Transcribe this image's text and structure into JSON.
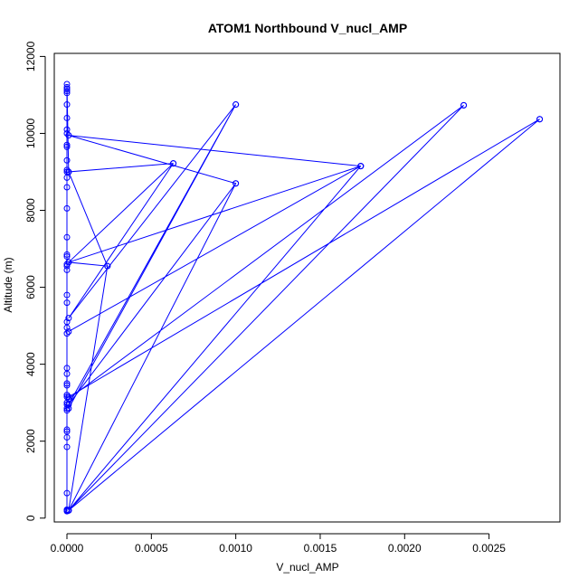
{
  "chart_data": {
    "type": "line",
    "title": "ATOM1 Northbound V_nucl_AMP",
    "xlabel": "V_nucl_AMP",
    "ylabel": "Altitude (m)",
    "xlim": [
      -7.5e-05,
      0.00292
    ],
    "ylim": [
      -100,
      12080
    ],
    "xticks": [
      0,
      0.0005,
      0.001,
      0.0015,
      0.002,
      0.0025
    ],
    "xtick_labels": [
      "0.0000",
      "0.0005",
      "0.0010",
      "0.0015",
      "0.0020",
      "0.0025"
    ],
    "yticks": [
      0,
      2000,
      4000,
      6000,
      8000,
      10000,
      12000
    ],
    "ytick_labels": [
      "0",
      "2000",
      "4000",
      "6000",
      "8000",
      "10000",
      "12000"
    ],
    "grid": false,
    "series": [
      {
        "color": "#0000ff",
        "marker": "open-circle",
        "points": [
          [
            0.0,
            200
          ],
          [
            0.0,
            180
          ],
          [
            0.0,
            200
          ],
          [
            0.0,
            220
          ],
          [
            0.0,
            650
          ],
          [
            0.0,
            1850
          ],
          [
            0.0,
            2100
          ],
          [
            0.0,
            2250
          ],
          [
            0.0,
            2300
          ],
          [
            0.0,
            2800
          ],
          [
            0.0,
            2850
          ],
          [
            0.0,
            2950
          ],
          [
            0.0,
            3000
          ],
          [
            0.0,
            3150
          ],
          [
            0.0,
            3200
          ],
          [
            0.0,
            3450
          ],
          [
            0.0,
            3500
          ],
          [
            0.0,
            3750
          ],
          [
            0.0,
            3900
          ],
          [
            0.0,
            4800
          ],
          [
            0.0,
            4950
          ],
          [
            0.0,
            5100
          ],
          [
            0.0,
            5600
          ],
          [
            0.0,
            5800
          ],
          [
            0.0,
            6450
          ],
          [
            0.0,
            6550
          ],
          [
            0.0,
            6600
          ],
          [
            0.0,
            6800
          ],
          [
            0.0,
            6850
          ],
          [
            0.0,
            7300
          ],
          [
            0.0,
            8050
          ],
          [
            0.0,
            8600
          ],
          [
            0.0,
            8850
          ],
          [
            0.0,
            9000
          ],
          [
            0.0,
            9050
          ],
          [
            0.0,
            9300
          ],
          [
            0.0,
            9650
          ],
          [
            0.0,
            9700
          ],
          [
            0.0,
            10000
          ],
          [
            0.0,
            10100
          ],
          [
            0.0,
            10400
          ],
          [
            0.0,
            10750
          ],
          [
            0.0,
            11050
          ],
          [
            0.0,
            11100
          ],
          [
            0.0,
            11150
          ],
          [
            0.0,
            11200
          ],
          [
            0.0,
            11280
          ],
          [
            1e-05,
            9000
          ],
          [
            0.00063,
            9220
          ],
          [
            1e-05,
            9000
          ],
          [
            0.00024,
            6550
          ],
          [
            1e-05,
            200
          ],
          [
            0.00024,
            6550
          ],
          [
            1e-05,
            6650
          ],
          [
            0.00063,
            9220
          ],
          [
            1e-05,
            5200
          ],
          [
            0.001,
            10750
          ],
          [
            1e-05,
            2850
          ],
          [
            0.001,
            10750
          ],
          [
            1e-05,
            2950
          ],
          [
            0.001,
            8700
          ],
          [
            1e-05,
            200
          ],
          [
            0.001,
            8700
          ],
          [
            1e-05,
            9950
          ],
          [
            0.00174,
            9150
          ],
          [
            1e-05,
            6650
          ],
          [
            0.00174,
            9150
          ],
          [
            1e-05,
            4850
          ],
          [
            0.00174,
            9150
          ],
          [
            1e-05,
            200
          ],
          [
            0.00235,
            10730
          ],
          [
            1e-05,
            3100
          ],
          [
            0.00235,
            10730
          ],
          [
            1e-05,
            200
          ],
          [
            0.0028,
            10370
          ],
          [
            1e-05,
            3150
          ],
          [
            0.0028,
            10370
          ]
        ]
      }
    ]
  }
}
